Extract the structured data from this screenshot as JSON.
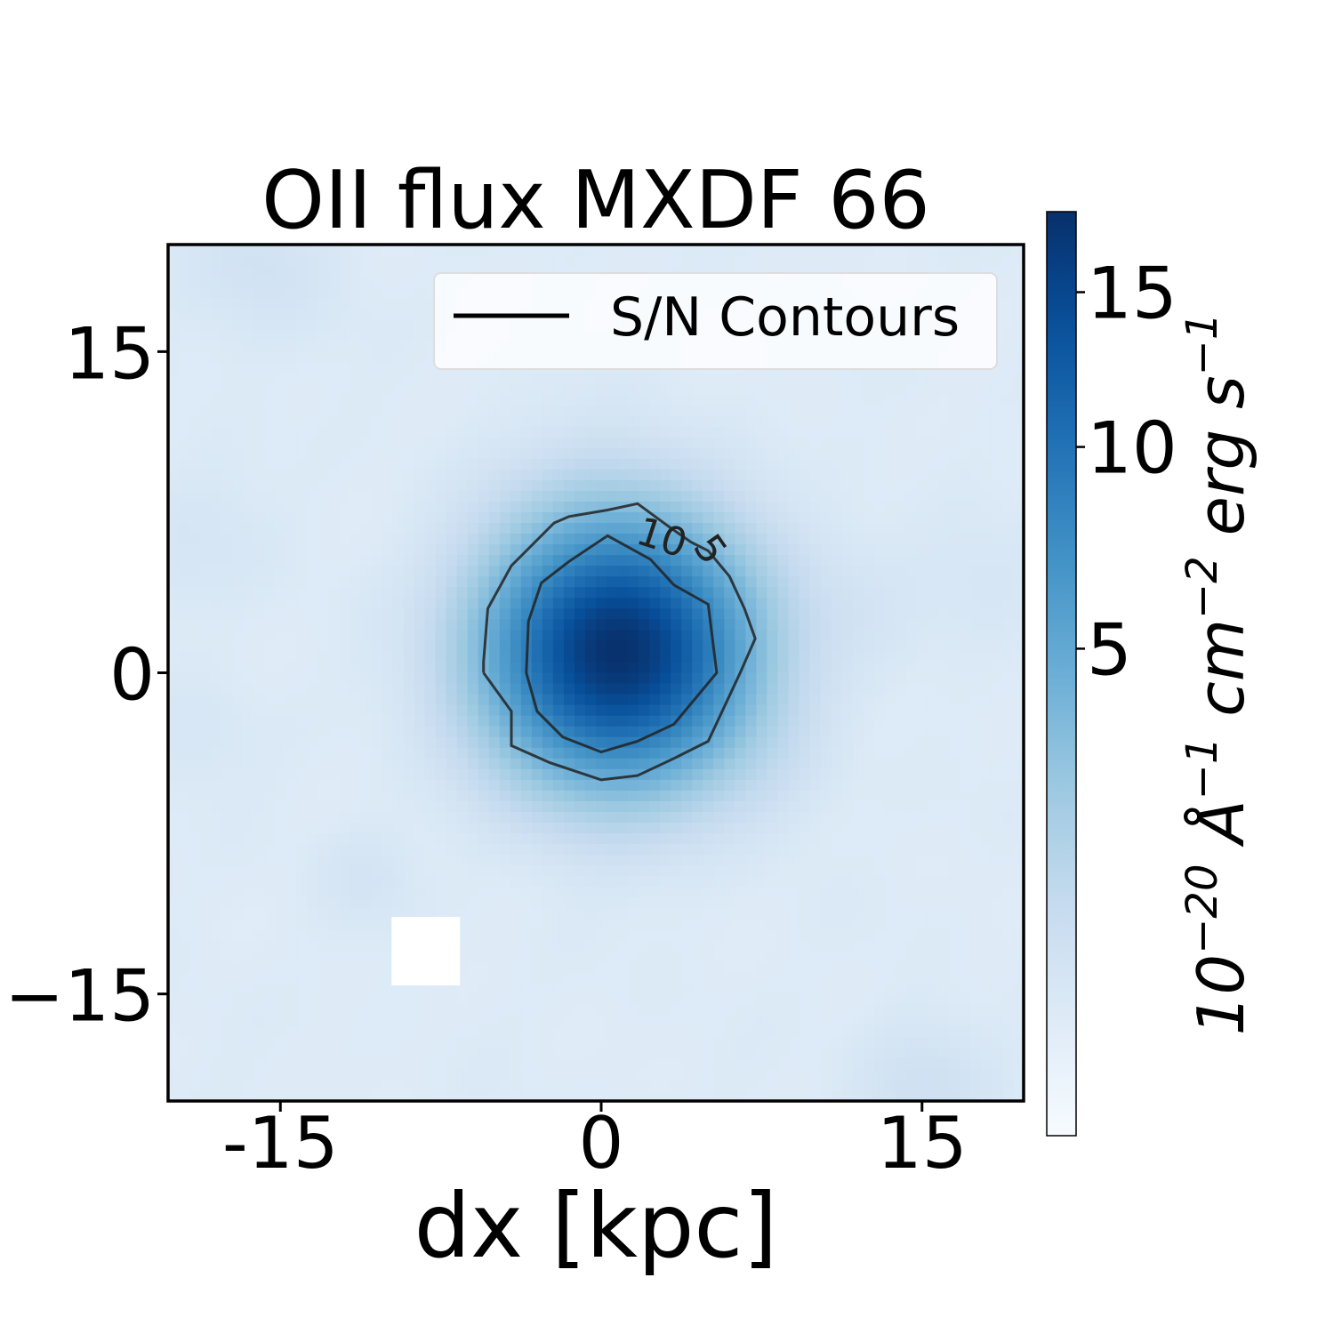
{
  "chart_data": {
    "type": "heatmap",
    "title": "OII flux MXDF 66",
    "xlabel": "dx [kpc]",
    "ylabel": "",
    "xlim": [
      -20.25,
      19.75
    ],
    "ylim": [
      -20,
      20
    ],
    "xticks": [
      -15,
      0,
      15
    ],
    "xtick_labels": [
      "-15",
      "0",
      "15"
    ],
    "yticks": [
      15,
      0,
      -15
    ],
    "ytick_labels": [
      "15",
      "0",
      "−15"
    ],
    "grid": false,
    "colormap": "Blues",
    "colorbar": {
      "label": "10^{-20} Å^{-1} cm^{-2} erg s^{-1}",
      "label_parts": [
        "10",
        "−20",
        " Å",
        "−1",
        " cm",
        "−2",
        " erg s",
        "−1"
      ],
      "range": [
        0,
        18
      ],
      "ticks": [
        5,
        10,
        15
      ],
      "tick_labels": [
        "5",
        "10",
        "15"
      ],
      "scale": "sqrt"
    },
    "source": {
      "center": [
        0.8,
        1.0
      ],
      "peak_flux": 17.5,
      "sigma_kpc": 3.6
    },
    "masked_region": {
      "x": [
        -9.8,
        -6.6
      ],
      "y": [
        -14.6,
        -11.4
      ]
    },
    "contours": [
      {
        "level": 5,
        "label": "5",
        "points": [
          [
            -5.5,
            0
          ],
          [
            -4.2,
            -1.8
          ],
          [
            -4.2,
            -3.4
          ],
          [
            -2.4,
            -4.2
          ],
          [
            -1.5,
            -4.5
          ],
          [
            0,
            -5
          ],
          [
            1.7,
            -4.8
          ],
          [
            3.4,
            -4
          ],
          [
            5,
            -3.2
          ],
          [
            6.5,
            0
          ],
          [
            7.2,
            1.6
          ],
          [
            6.7,
            3
          ],
          [
            6.0,
            4.5
          ],
          [
            5.0,
            5.7
          ],
          [
            4.2,
            6.1
          ],
          [
            3.2,
            6.8
          ],
          [
            1.7,
            7.9
          ],
          [
            0.3,
            7.6
          ],
          [
            -1.5,
            7.3
          ],
          [
            -2.2,
            7.0
          ],
          [
            -4.2,
            5.0
          ],
          [
            -5.3,
            3.0
          ],
          [
            -5.5,
            0.5
          ],
          [
            -5.5,
            0
          ]
        ]
      },
      {
        "level": 10,
        "label": "10",
        "points": [
          [
            -3.4,
            2.4
          ],
          [
            -3.5,
            0
          ],
          [
            -3.0,
            -1.8
          ],
          [
            -1.8,
            -3.0
          ],
          [
            0,
            -3.7
          ],
          [
            1.7,
            -3.2
          ],
          [
            3.4,
            -2.4
          ],
          [
            5.4,
            0
          ],
          [
            5.0,
            3.2
          ],
          [
            3.4,
            4.1
          ],
          [
            2.3,
            5.3
          ],
          [
            0.3,
            6.4
          ],
          [
            -1.5,
            5.2
          ],
          [
            -2.8,
            4.2
          ],
          [
            -3.4,
            2.4
          ]
        ]
      }
    ],
    "legend": {
      "entries": [
        "S/N Contours"
      ],
      "placement": "upper right"
    }
  }
}
